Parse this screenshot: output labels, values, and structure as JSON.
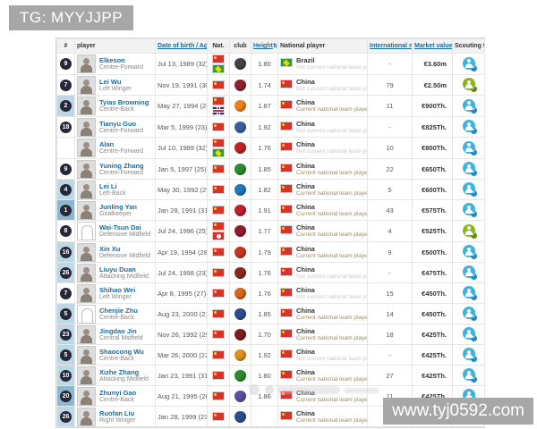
{
  "overlays": {
    "tg_banner": "TG: MYYJJPP",
    "url_banner": "www.tyj0592.com"
  },
  "colors": {
    "banner_bg": "#a7a7a7",
    "header_link": "#1b6b9c",
    "scout_add": "#3bb2e0",
    "scout_check": "#86b817",
    "num_highlight": "#bdd7e4"
  },
  "table": {
    "headers": {
      "rank": "#",
      "player": "player",
      "dob": "Date of birth / Age",
      "nat": "Nat.",
      "club": "club",
      "height": "Height",
      "national": "National player",
      "matches": "International matches",
      "market": "Market value",
      "scout": "Scouting tool"
    },
    "sort_arrow": "⇅",
    "rows": [
      {
        "num": "9",
        "hl": 0,
        "name": "Elkeson",
        "position": "Centre-Forward",
        "dob": "Jul 13, 1989 (32)",
        "flags": [
          "cn",
          "br"
        ],
        "club_color": "#444444",
        "height": "1.80",
        "nation": "Brazil",
        "status": "Not current national team player",
        "status_style": "former",
        "matches": "-",
        "market": "€3.60m",
        "scout": "add",
        "photo": "person"
      },
      {
        "num": "7",
        "hl": 0,
        "name": "Lei Wu",
        "position": "Left Winger",
        "dob": "Nov 19, 1991 (30)",
        "flags": [
          "cn"
        ],
        "club_color": "#8b2332",
        "height": "1.74",
        "nation": "China",
        "status": "Not current national team player",
        "status_style": "former",
        "matches": "79",
        "market": "€2.50m",
        "scout": "check",
        "photo": "person"
      },
      {
        "num": "2",
        "hl": 1,
        "name": "Tyias Browning",
        "position": "Centre-Back",
        "dob": "May 27, 1994 (28)",
        "flags": [
          "cn",
          "gb"
        ],
        "club_color": "#e8821e",
        "height": "1.87",
        "nation": "China",
        "status": "Current national team player",
        "status_style": "current",
        "matches": "11",
        "market": "€900Th.",
        "scout": "add",
        "photo": "person"
      },
      {
        "num": "18",
        "hl": 0,
        "name": "Tianyu Guo",
        "position": "Centre-Forward",
        "dob": "Mar 5, 1999 (23)",
        "flags": [
          "cn"
        ],
        "club_color": "#3a5fa0",
        "height": "1.92",
        "nation": "China",
        "status": "Not current national team player",
        "status_style": "former",
        "matches": "-",
        "market": "€825Th.",
        "scout": "add",
        "photo": "person"
      },
      {
        "num": "",
        "hl": 0,
        "name": "Alan",
        "position": "Centre-Forward",
        "dob": "Jul 10, 1989 (32)",
        "flags": [
          "cn",
          "br"
        ],
        "club_color": "#c02424",
        "height": "1.76",
        "nation": "China",
        "status": "Not current national team player",
        "status_style": "former",
        "matches": "10",
        "market": "€800Th.",
        "scout": "add",
        "photo": "person"
      },
      {
        "num": "9",
        "hl": 0,
        "name": "Yuning Zhang",
        "position": "Centre-Forward",
        "dob": "Jan 5, 1997 (25)",
        "flags": [
          "cn"
        ],
        "club_color": "#2e8b2e",
        "height": "1.85",
        "nation": "China",
        "status": "Current national team player",
        "status_style": "current",
        "matches": "22",
        "market": "€650Th.",
        "scout": "add",
        "photo": "person"
      },
      {
        "num": "4",
        "hl": 1,
        "name": "Lei Li",
        "position": "Left-Back",
        "dob": "May 30, 1992 (29)",
        "flags": [
          "cn"
        ],
        "club_color": "#2277bb",
        "height": "1.82",
        "nation": "China",
        "status": "Current national team player",
        "status_style": "current",
        "matches": "5",
        "market": "€600Th.",
        "scout": "add",
        "photo": "person"
      },
      {
        "num": "1",
        "hl": 2,
        "name": "Junling Yan",
        "position": "Goalkeeper",
        "dob": "Jan 28, 1991 (31)",
        "flags": [
          "cn"
        ],
        "club_color": "#c01f2f",
        "height": "1.91",
        "nation": "China",
        "status": "Current national team player",
        "status_style": "current",
        "matches": "43",
        "market": "€575Th.",
        "scout": "add",
        "photo": "person"
      },
      {
        "num": "8",
        "hl": 0,
        "name": "Wai-Tsun Dai",
        "position": "Defensive Midfield",
        "dob": "Jul 24, 1996 (25)",
        "flags": [
          "cn",
          "hk"
        ],
        "club_color": "#8d1f2d",
        "height": "1.77",
        "nation": "China",
        "status": "Current national team player",
        "status_style": "current",
        "matches": "4",
        "market": "€525Th.",
        "scout": "check",
        "photo": "outline"
      },
      {
        "num": "16",
        "hl": 1,
        "name": "Xin Xu",
        "position": "Defensive Midfield",
        "dob": "Apr 19, 1994 (28)",
        "flags": [
          "cn"
        ],
        "club_color": "#c7341f",
        "height": "1.79",
        "nation": "China",
        "status": "Current national team player",
        "status_style": "current",
        "matches": "9",
        "market": "€500Th.",
        "scout": "add",
        "photo": "person"
      },
      {
        "num": "26",
        "hl": 1,
        "name": "Liuyu Duan",
        "position": "Attacking Midfield",
        "dob": "Jul 24, 1998 (23)",
        "flags": [
          "cn"
        ],
        "club_color": "#8a2a1e",
        "height": "1.76",
        "nation": "China",
        "status": "Not current national team player",
        "status_style": "former",
        "matches": "-",
        "market": "€475Th.",
        "scout": "add",
        "photo": "person"
      },
      {
        "num": "7",
        "hl": 0,
        "name": "Shihao Wei",
        "position": "Left Winger",
        "dob": "Apr 8, 1995 (27)",
        "flags": [
          "cn"
        ],
        "club_color": "#d2691e",
        "height": "1.76",
        "nation": "China",
        "status": "Not current national team player",
        "status_style": "former",
        "matches": "15",
        "market": "€450Th.",
        "scout": "add",
        "photo": "person"
      },
      {
        "num": "5",
        "hl": 1,
        "name": "Chenjie Zhu",
        "position": "Centre-Back",
        "dob": "Aug 23, 2000 (21)",
        "flags": [
          "cn"
        ],
        "club_color": "#2b4f8e",
        "height": "1.85",
        "nation": "China",
        "status": "Current national team player",
        "status_style": "current",
        "matches": "14",
        "market": "€450Th.",
        "scout": "add",
        "photo": "outline"
      },
      {
        "num": "23",
        "hl": 1,
        "name": "Jingdao Jin",
        "position": "Central Midfield",
        "dob": "Nov 26, 1992 (29)",
        "flags": [
          "cn"
        ],
        "club_color": "#7a1f1f",
        "height": "1.70",
        "nation": "China",
        "status": "Current national team player",
        "status_style": "current",
        "matches": "18",
        "market": "€425Th.",
        "scout": "add",
        "photo": "person"
      },
      {
        "num": "5",
        "hl": 1,
        "name": "Shaocong Wu",
        "position": "Centre-Back",
        "dob": "Mar 26, 2000 (22)",
        "flags": [
          "cn"
        ],
        "club_color": "#e0901f",
        "height": "1.92",
        "nation": "China",
        "status": "Not current national team player",
        "status_style": "former",
        "matches": "-",
        "market": "€425Th.",
        "scout": "add",
        "photo": "person"
      },
      {
        "num": "10",
        "hl": 1,
        "name": "Xizhe Zhang",
        "position": "Attacking Midfield",
        "dob": "Jan 23, 1991 (31)",
        "flags": [
          "cn"
        ],
        "club_color": "#2e8b2e",
        "height": "1.80",
        "nation": "China",
        "status": "Current national team player",
        "status_style": "current",
        "matches": "27",
        "market": "€425Th.",
        "scout": "add",
        "photo": "person"
      },
      {
        "num": "20",
        "hl": 2,
        "name": "Zhunyi Gao",
        "position": "Centre-Back",
        "dob": "Aug 21, 1995 (26)",
        "flags": [
          "cn"
        ],
        "club_color": "#5a4fa0",
        "height": "1.86",
        "nation": "China",
        "status": "Current national team player",
        "status_style": "current",
        "matches": "11",
        "market": "€425Th.",
        "scout": "add",
        "photo": "person"
      },
      {
        "num": "26",
        "hl": 1,
        "name": "Ruofan Liu",
        "position": "Right Winger",
        "dob": "Jan 28, 1999 (23)",
        "flags": [
          "cn"
        ],
        "club_color": "#2b4f8e",
        "height": "",
        "nation": "China",
        "status": "Current national team player",
        "status_style": "current",
        "matches": "-",
        "market": "€425Th.",
        "scout": "add",
        "photo": "person"
      }
    ]
  }
}
